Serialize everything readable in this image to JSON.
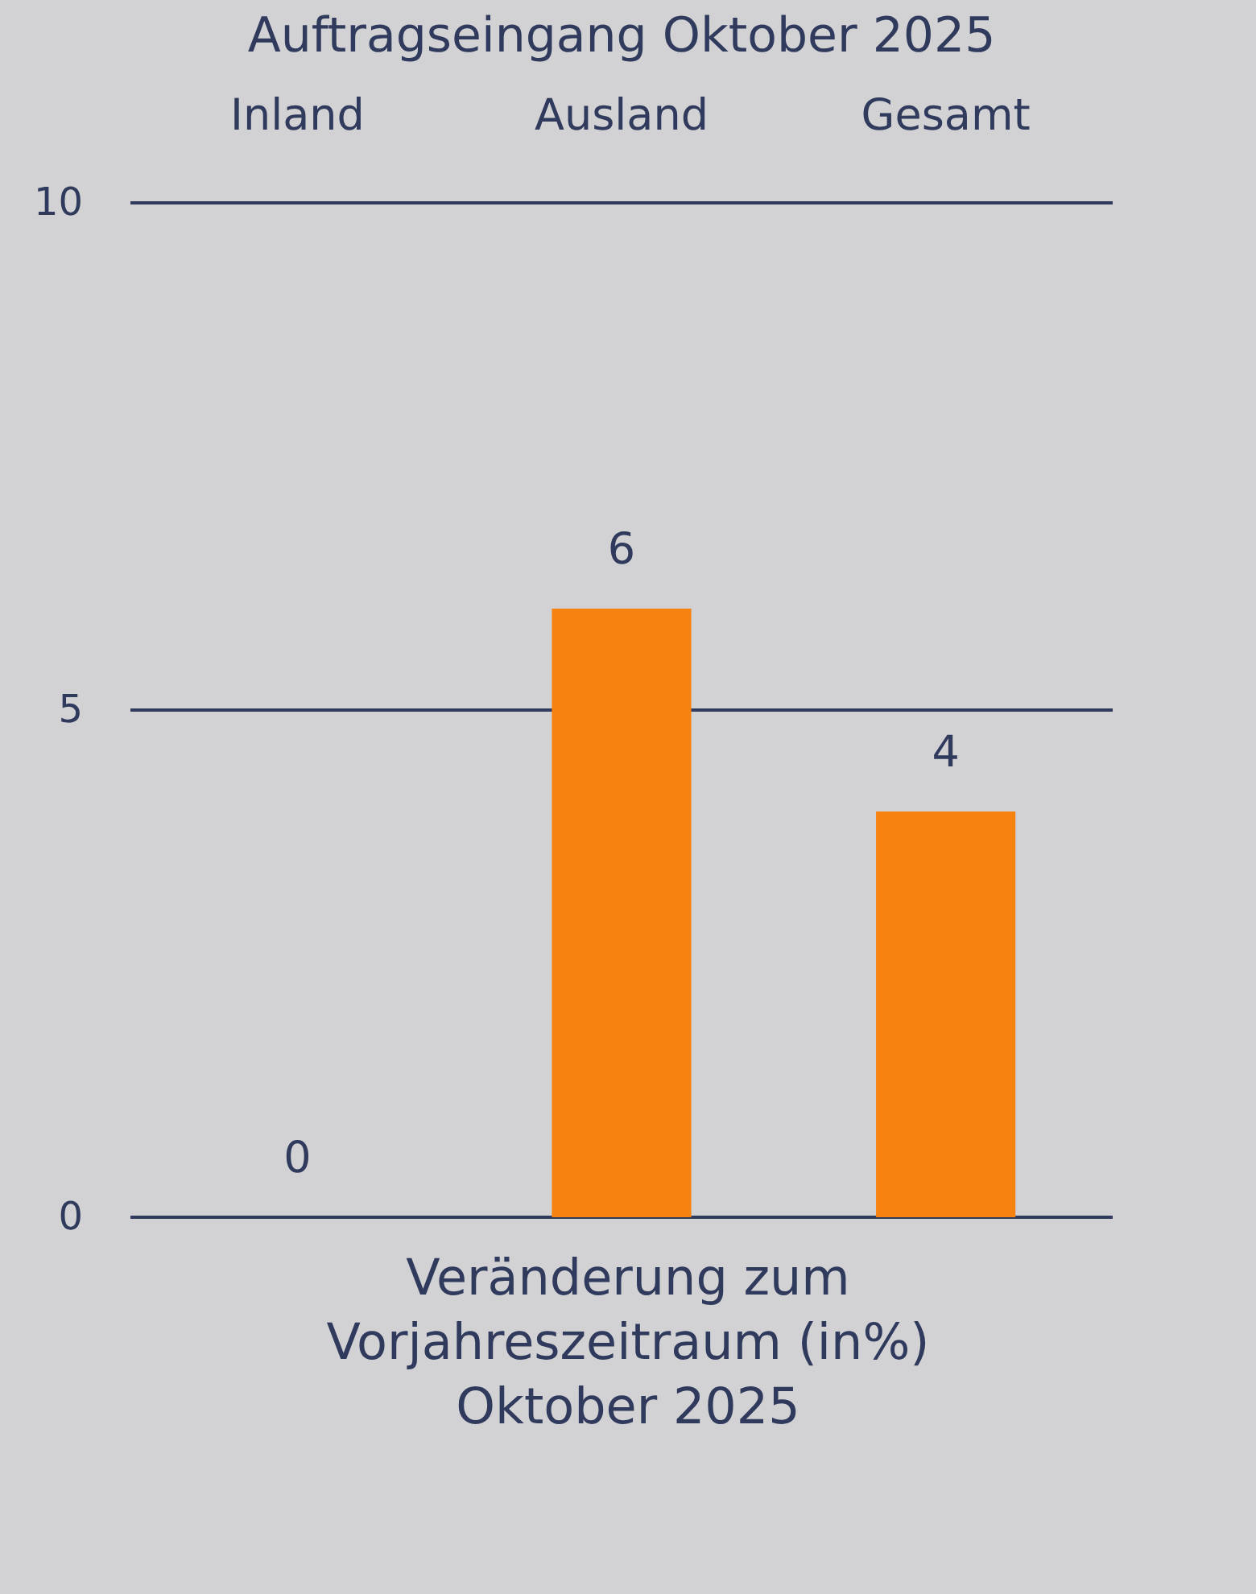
{
  "chart_data": {
    "type": "bar",
    "title": "Auftragseingang Oktober 2025",
    "categories": [
      "Inland",
      "Ausland",
      "Gesamt"
    ],
    "values": [
      0,
      6,
      4
    ],
    "color": "#f7820f",
    "xlabel": "Veränderung zum\nVorjahreszeitraum (in%)\nOktober 2025",
    "ylim": [
      0,
      10
    ],
    "yticks": [
      0,
      5,
      10
    ],
    "data_labels": true,
    "ref_lines": [
      {
        "axis": "y",
        "value": 5,
        "color": "#2f3a5c"
      }
    ]
  }
}
